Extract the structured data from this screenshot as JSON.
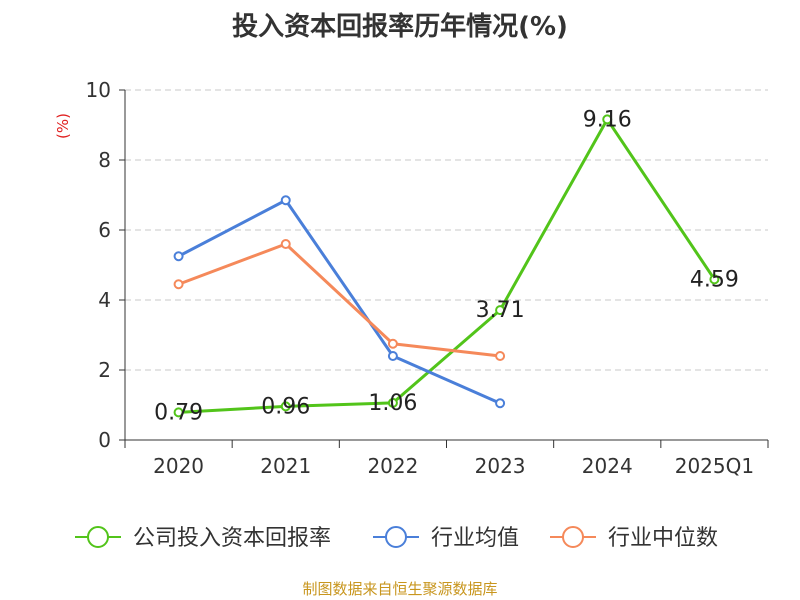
{
  "title": "投入资本回报率历年情况(%)",
  "source": "制图数据来自恒生聚源数据库",
  "chart_data": {
    "type": "line",
    "title": "投入资本回报率历年情况(%)",
    "ylabel": "(%)",
    "ylim": [
      0,
      10
    ],
    "yticks": [
      0,
      2,
      4,
      6,
      8,
      10
    ],
    "grid": true,
    "legend_position": "bottom",
    "categories": [
      "2020",
      "2021",
      "2022",
      "2023",
      "2024",
      "2025Q1"
    ],
    "series": [
      {
        "name": "公司投入资本回报率",
        "color": "#52c41a",
        "values": [
          0.79,
          0.96,
          1.06,
          3.71,
          9.16,
          4.59
        ],
        "labels": [
          "0.79",
          "0.96",
          "1.06",
          "3.71",
          "9.16",
          "4.59"
        ],
        "show_labels": true
      },
      {
        "name": "行业均值",
        "color": "#4a7fd9",
        "values": [
          5.25,
          6.85,
          2.4,
          1.05,
          null,
          null
        ],
        "show_labels": false
      },
      {
        "name": "行业中位数",
        "color": "#f5895a",
        "values": [
          4.45,
          5.6,
          2.75,
          2.4,
          null,
          null
        ],
        "show_labels": false
      }
    ]
  }
}
